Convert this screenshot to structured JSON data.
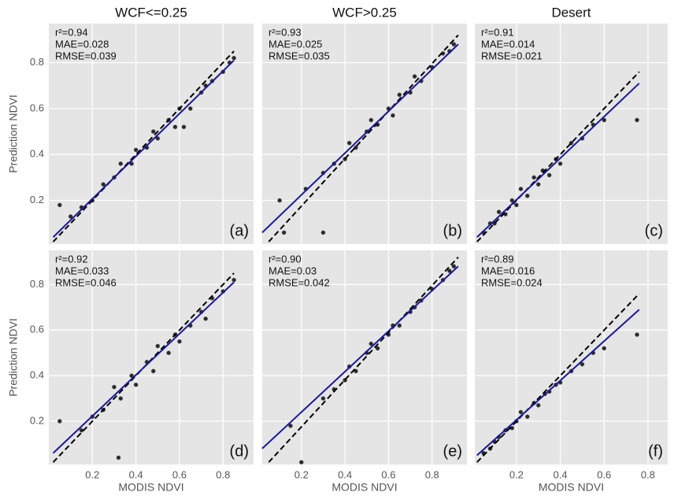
{
  "chart_data": [
    {
      "type": "scatter",
      "title": "WCF<=0.25",
      "ylabel": "Prediction NDVI",
      "annotations": [
        "r²=0.94",
        "MAE=0.028",
        "RMSE=0.039"
      ],
      "panel_label": "(a)",
      "xlim": [
        0,
        0.94
      ],
      "ylim": [
        0.01,
        0.97
      ],
      "xticks": [
        0.2,
        0.4,
        0.6,
        0.8
      ],
      "yticks": [
        0.2,
        0.4,
        0.6,
        0.8
      ],
      "show_xtick_labels": false,
      "show_ytick_labels": true,
      "grid": true,
      "point_color": "#2a2a2a",
      "x": [
        0.05,
        0.1,
        0.15,
        0.2,
        0.25,
        0.3,
        0.33,
        0.38,
        0.4,
        0.45,
        0.48,
        0.5,
        0.55,
        0.58,
        0.6,
        0.62,
        0.65,
        0.7,
        0.72,
        0.75,
        0.8,
        0.83,
        0.85
      ],
      "y": [
        0.18,
        0.13,
        0.17,
        0.2,
        0.27,
        0.3,
        0.36,
        0.36,
        0.42,
        0.43,
        0.5,
        0.47,
        0.55,
        0.52,
        0.6,
        0.52,
        0.6,
        0.67,
        0.7,
        0.72,
        0.76,
        0.8,
        0.82
      ],
      "lines": [
        {
          "x": [
            0.02,
            0.85
          ],
          "y": [
            0.02,
            0.85
          ],
          "color": "#000000",
          "dash": true
        },
        {
          "x": [
            0.02,
            0.85
          ],
          "y": [
            0.04,
            0.81
          ],
          "color": "#1a1a9a",
          "dash": false
        }
      ]
    },
    {
      "type": "scatter",
      "title": "WCF>0.25",
      "annotations": [
        "r²=0.93",
        "MAE=0.025",
        "RMSE=0.035"
      ],
      "panel_label": "(b)",
      "xlim": [
        0.02,
        0.96
      ],
      "ylim": [
        0.01,
        0.97
      ],
      "xticks": [
        0.2,
        0.4,
        0.6,
        0.8
      ],
      "yticks": [
        0.2,
        0.4,
        0.6,
        0.8
      ],
      "show_xtick_labels": false,
      "show_ytick_labels": false,
      "grid": true,
      "point_color": "#2a2a2a",
      "x": [
        0.1,
        0.12,
        0.22,
        0.3,
        0.3,
        0.35,
        0.4,
        0.42,
        0.45,
        0.5,
        0.52,
        0.55,
        0.6,
        0.62,
        0.65,
        0.7,
        0.72,
        0.75,
        0.8,
        0.85,
        0.88,
        0.9
      ],
      "y": [
        0.2,
        0.06,
        0.25,
        0.32,
        0.06,
        0.36,
        0.38,
        0.45,
        0.43,
        0.5,
        0.55,
        0.53,
        0.6,
        0.57,
        0.66,
        0.67,
        0.74,
        0.72,
        0.78,
        0.84,
        0.85,
        0.88
      ],
      "lines": [
        {
          "x": [
            0.05,
            0.92
          ],
          "y": [
            0.02,
            0.92
          ],
          "color": "#000000",
          "dash": true
        },
        {
          "x": [
            0.02,
            0.92
          ],
          "y": [
            0.06,
            0.88
          ],
          "color": "#1a1a9a",
          "dash": false
        }
      ]
    },
    {
      "type": "scatter",
      "title": "Desert",
      "annotations": [
        "r²=0.91",
        "MAE=0.014",
        "RMSE=0.021"
      ],
      "panel_label": "(c)",
      "xlim": [
        0.01,
        0.89
      ],
      "ylim": [
        0.01,
        0.97
      ],
      "xticks": [
        0.2,
        0.4,
        0.6,
        0.8
      ],
      "yticks": [
        0.2,
        0.4,
        0.6,
        0.8
      ],
      "show_xtick_labels": false,
      "show_ytick_labels": false,
      "grid": true,
      "point_color": "#2a2a2a",
      "x": [
        0.05,
        0.08,
        0.1,
        0.12,
        0.15,
        0.18,
        0.2,
        0.22,
        0.25,
        0.28,
        0.3,
        0.32,
        0.35,
        0.38,
        0.4,
        0.45,
        0.5,
        0.55,
        0.6,
        0.75
      ],
      "y": [
        0.06,
        0.1,
        0.1,
        0.15,
        0.14,
        0.2,
        0.18,
        0.25,
        0.22,
        0.3,
        0.27,
        0.33,
        0.31,
        0.38,
        0.36,
        0.45,
        0.47,
        0.53,
        0.55,
        0.55
      ],
      "lines": [
        {
          "x": [
            0.02,
            0.76
          ],
          "y": [
            0.02,
            0.76
          ],
          "color": "#000000",
          "dash": true
        },
        {
          "x": [
            0.02,
            0.76
          ],
          "y": [
            0.04,
            0.71
          ],
          "color": "#1a1a9a",
          "dash": false
        }
      ]
    },
    {
      "type": "scatter",
      "xlabel": "MODIS NDVI",
      "ylabel": "Prediction NDVI",
      "annotations": [
        "r²=0.92",
        "MAE=0.033",
        "RMSE=0.046"
      ],
      "panel_label": "(d)",
      "xlim": [
        0,
        0.94
      ],
      "ylim": [
        0.01,
        0.95
      ],
      "xticks": [
        0.2,
        0.4,
        0.6,
        0.8
      ],
      "yticks": [
        0.2,
        0.4,
        0.6,
        0.8
      ],
      "show_xtick_labels": true,
      "show_ytick_labels": true,
      "grid": true,
      "point_color": "#2a2a2a",
      "x": [
        0.05,
        0.15,
        0.2,
        0.25,
        0.3,
        0.32,
        0.33,
        0.38,
        0.4,
        0.45,
        0.48,
        0.5,
        0.55,
        0.58,
        0.6,
        0.65,
        0.7,
        0.72,
        0.75,
        0.8,
        0.85
      ],
      "y": [
        0.2,
        0.16,
        0.22,
        0.25,
        0.35,
        0.04,
        0.3,
        0.4,
        0.36,
        0.46,
        0.42,
        0.53,
        0.5,
        0.58,
        0.55,
        0.62,
        0.68,
        0.65,
        0.74,
        0.77,
        0.82
      ],
      "lines": [
        {
          "x": [
            0.02,
            0.85
          ],
          "y": [
            0.02,
            0.85
          ],
          "color": "#000000",
          "dash": true
        },
        {
          "x": [
            0.02,
            0.85
          ],
          "y": [
            0.06,
            0.81
          ],
          "color": "#1a1a9a",
          "dash": false
        }
      ]
    },
    {
      "type": "scatter",
      "xlabel": "MODIS NDVI",
      "annotations": [
        "r²=0.90",
        "MAE=0.03",
        "RMSE=0.042"
      ],
      "panel_label": "(e)",
      "xlim": [
        0.02,
        0.96
      ],
      "ylim": [
        0.01,
        0.95
      ],
      "xticks": [
        0.2,
        0.4,
        0.6,
        0.8
      ],
      "yticks": [
        0.2,
        0.4,
        0.6,
        0.8
      ],
      "show_xtick_labels": true,
      "show_ytick_labels": false,
      "grid": true,
      "point_color": "#2a2a2a",
      "x": [
        0.15,
        0.2,
        0.3,
        0.35,
        0.4,
        0.42,
        0.45,
        0.5,
        0.52,
        0.55,
        0.6,
        0.62,
        0.65,
        0.7,
        0.72,
        0.75,
        0.8,
        0.85,
        0.88,
        0.9
      ],
      "y": [
        0.18,
        0.02,
        0.3,
        0.34,
        0.38,
        0.44,
        0.42,
        0.5,
        0.54,
        0.52,
        0.58,
        0.62,
        0.62,
        0.68,
        0.7,
        0.73,
        0.78,
        0.82,
        0.86,
        0.88
      ],
      "lines": [
        {
          "x": [
            0.05,
            0.92
          ],
          "y": [
            0.02,
            0.92
          ],
          "color": "#000000",
          "dash": true
        },
        {
          "x": [
            0.02,
            0.92
          ],
          "y": [
            0.08,
            0.88
          ],
          "color": "#1a1a9a",
          "dash": false
        }
      ]
    },
    {
      "type": "scatter",
      "xlabel": "MODIS NDVI",
      "annotations": [
        "r²=0.89",
        "MAE=0.016",
        "RMSE=0.024"
      ],
      "panel_label": "(f)",
      "xlim": [
        0.01,
        0.89
      ],
      "ylim": [
        0.01,
        0.95
      ],
      "xticks": [
        0.2,
        0.4,
        0.6,
        0.8
      ],
      "yticks": [
        0.2,
        0.4,
        0.6,
        0.8
      ],
      "show_xtick_labels": true,
      "show_ytick_labels": false,
      "grid": true,
      "point_color": "#2a2a2a",
      "x": [
        0.05,
        0.08,
        0.1,
        0.12,
        0.15,
        0.18,
        0.2,
        0.22,
        0.25,
        0.28,
        0.3,
        0.33,
        0.35,
        0.38,
        0.4,
        0.45,
        0.5,
        0.55,
        0.6,
        0.75
      ],
      "y": [
        0.06,
        0.08,
        0.11,
        0.13,
        0.16,
        0.17,
        0.2,
        0.24,
        0.22,
        0.28,
        0.27,
        0.32,
        0.33,
        0.36,
        0.37,
        0.42,
        0.45,
        0.5,
        0.52,
        0.58
      ],
      "lines": [
        {
          "x": [
            0.02,
            0.76
          ],
          "y": [
            0.02,
            0.76
          ],
          "color": "#000000",
          "dash": true
        },
        {
          "x": [
            0.02,
            0.76
          ],
          "y": [
            0.05,
            0.69
          ],
          "color": "#1a1a9a",
          "dash": false
        }
      ]
    }
  ]
}
